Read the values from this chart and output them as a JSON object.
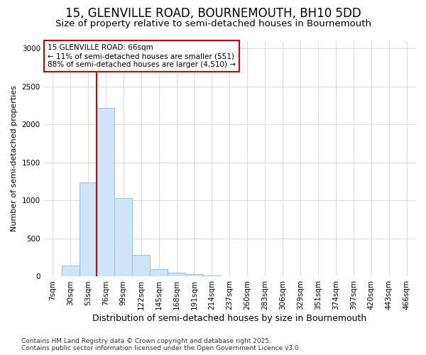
{
  "title": "15, GLENVILLE ROAD, BOURNEMOUTH, BH10 5DD",
  "subtitle": "Size of property relative to semi-detached houses in Bournemouth",
  "xlabel": "Distribution of semi-detached houses by size in Bournemouth",
  "ylabel": "Number of semi-detached properties",
  "bins": [
    "7sqm",
    "30sqm",
    "53sqm",
    "76sqm",
    "99sqm",
    "122sqm",
    "145sqm",
    "168sqm",
    "191sqm",
    "214sqm",
    "237sqm",
    "260sqm",
    "283sqm",
    "306sqm",
    "329sqm",
    "351sqm",
    "374sqm",
    "397sqm",
    "420sqm",
    "443sqm",
    "466sqm"
  ],
  "values": [
    5,
    145,
    1240,
    2220,
    1030,
    280,
    100,
    55,
    35,
    15,
    5,
    0,
    0,
    0,
    0,
    0,
    0,
    0,
    0,
    0,
    0
  ],
  "bar_color": "#d0e4f7",
  "bar_edge_color": "#99c0e0",
  "vline_color": "#cc0000",
  "vline_x": 3.0,
  "annotation_text": "15 GLENVILLE ROAD: 66sqm\n← 11% of semi-detached houses are smaller (551)\n88% of semi-detached houses are larger (4,510) →",
  "annotation_box_color": "#ffffff",
  "annotation_box_edge_color": "#cc0000",
  "ylim": [
    0,
    3100
  ],
  "yticks": [
    0,
    500,
    1000,
    1500,
    2000,
    2500,
    3000
  ],
  "grid_color": "#cccccc",
  "bg_color": "#ffffff",
  "plot_bg_color": "#ffffff",
  "footer": "Contains HM Land Registry data © Crown copyright and database right 2025.\nContains public sector information licensed under the Open Government Licence v3.0.",
  "title_fontsize": 12,
  "subtitle_fontsize": 9.5,
  "xlabel_fontsize": 9,
  "ylabel_fontsize": 8,
  "tick_fontsize": 7.5,
  "annotation_fontsize": 7.5,
  "footer_fontsize": 6.5
}
